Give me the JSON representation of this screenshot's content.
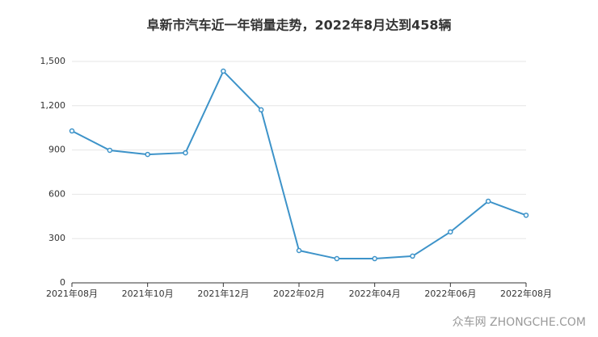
{
  "chart_data": {
    "type": "line",
    "title": "阜新市汽车近一年销量走势，2022年8月达到458辆",
    "categories": [
      "2021年08月",
      null,
      "2021年10月",
      null,
      "2021年12月",
      null,
      "2022年02月",
      null,
      "2022年04月",
      null,
      "2022年06月",
      null,
      "2022年08月"
    ],
    "series": [
      {
        "name": "销量",
        "color": "#3d93c9",
        "values": [
          1029,
          898,
          870,
          881,
          1434,
          1172,
          219,
          164,
          164,
          181,
          345,
          553,
          458
        ]
      }
    ],
    "ylim": [
      0,
      1500
    ],
    "yticks": [
      0,
      300,
      600,
      900,
      {
        "value": 1200,
        "label": "1,200"
      },
      {
        "value": 1500,
        "label": "1,500"
      }
    ],
    "grid": true,
    "watermark": "众车网 ZHONGCHE.COM"
  }
}
